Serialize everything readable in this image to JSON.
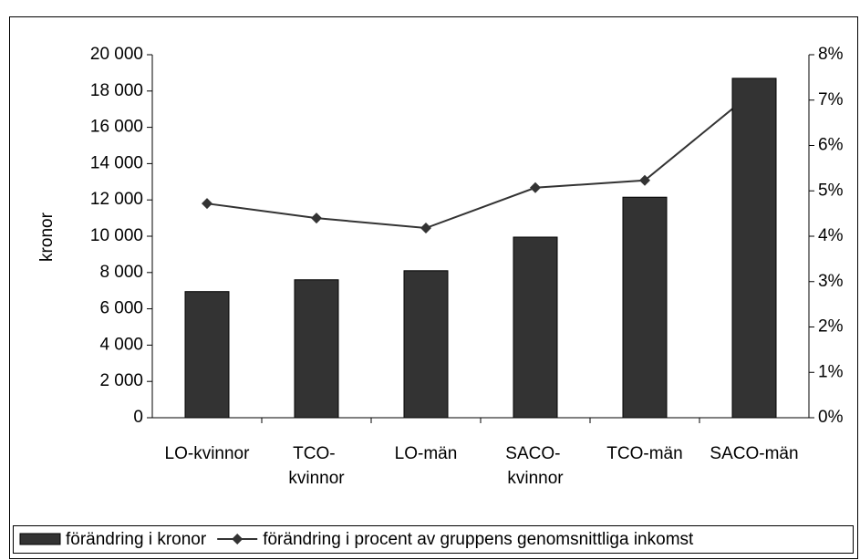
{
  "chart_data": {
    "type": "bar-line",
    "categories": [
      "LO-kvinnor",
      "TCO- kvinnor",
      "LO-män",
      "SACO- kvinnor",
      "TCO-män",
      "SACO-män"
    ],
    "y_label": "kronor",
    "series": [
      {
        "name": "förändring i kronor",
        "type": "bar",
        "color": "#333333",
        "values": [
          6950,
          7600,
          8100,
          9950,
          12150,
          18700
        ]
      },
      {
        "name": "förändring i procent av gruppens genomsnittliga inkomst",
        "type": "line",
        "axis": "y2",
        "color": "#333333",
        "values": [
          4.72,
          4.4,
          4.18,
          5.07,
          5.23,
          7.2
        ]
      }
    ],
    "ylim": [
      0,
      20000
    ],
    "yticks": [
      0,
      {
        "value": 2000,
        "label": "2 000"
      },
      {
        "value": 4000,
        "label": "4 000"
      },
      {
        "value": 6000,
        "label": "6 000"
      },
      {
        "value": 8000,
        "label": "8 000"
      },
      {
        "value": 10000,
        "label": "10 000"
      },
      {
        "value": 12000,
        "label": "12 000"
      },
      {
        "value": 14000,
        "label": "14 000"
      },
      {
        "value": 16000,
        "label": "16 000"
      },
      {
        "value": 18000,
        "label": "18 000"
      },
      {
        "value": 20000,
        "label": "20 000"
      }
    ],
    "y2lim": [
      0,
      8
    ],
    "y2ticks": [
      {
        "value": 0,
        "label": "0%"
      },
      {
        "value": 1,
        "label": "1%"
      },
      {
        "value": 2,
        "label": "2%"
      },
      {
        "value": 3,
        "label": "3%"
      },
      {
        "value": 4,
        "label": "4%"
      },
      {
        "value": 5,
        "label": "5%"
      },
      {
        "value": 6,
        "label": "6%"
      },
      {
        "value": 7,
        "label": "7%"
      },
      {
        "value": 8,
        "label": "8%"
      }
    ],
    "legend": "bottom"
  }
}
